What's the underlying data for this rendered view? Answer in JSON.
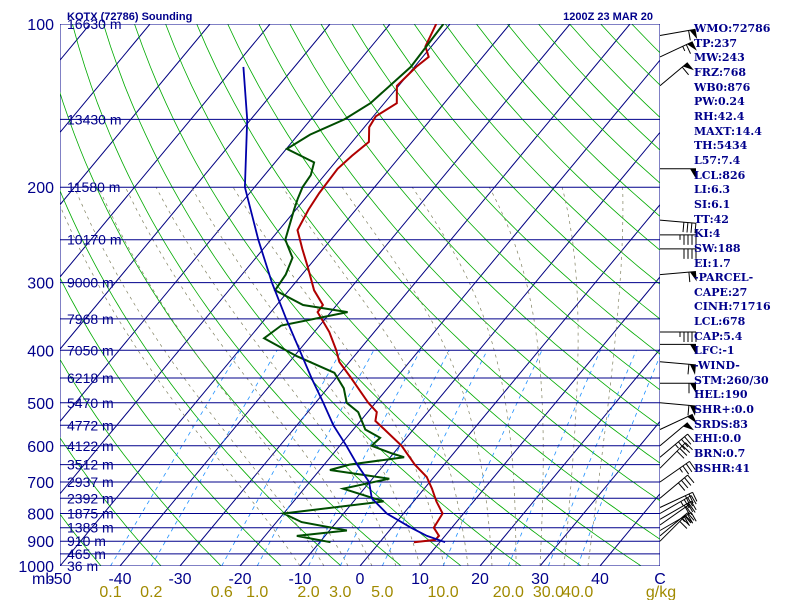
{
  "header": {
    "station": "KOTX (72786) Sounding",
    "time": "1200Z 23 MAR 20"
  },
  "axis": {
    "pressure_unit": "mb",
    "mixing_unit": "g/kg",
    "corner_label": "C"
  },
  "colors": {
    "isobar": "#00008b",
    "isotherm": "#000080",
    "dry_adiabat": "#00aa00",
    "moist_adiabat": "#808060",
    "mixing_ratio": "#1e90ff",
    "temperature": "#b00000",
    "dewpoint": "#004d00",
    "parcel": "#0000aa"
  },
  "chart_data": {
    "type": "skew-t",
    "ylim_mb": [
      1000,
      100
    ],
    "xlim_C": [
      -50,
      50
    ],
    "skew_C_per_log10": 75,
    "pressure_levels": [
      {
        "p": 100,
        "label": "100",
        "height": "16630 m"
      },
      {
        "p": 150,
        "label": "",
        "height": "13430 m"
      },
      {
        "p": 200,
        "label": "200",
        "height": "11580 m"
      },
      {
        "p": 250,
        "label": "",
        "height": "10170 m"
      },
      {
        "p": 300,
        "label": "300",
        "height": "9000 m"
      },
      {
        "p": 350,
        "label": "",
        "height": "7968 m"
      },
      {
        "p": 400,
        "label": "400",
        "height": "7050 m"
      },
      {
        "p": 450,
        "label": "",
        "height": "6218 m"
      },
      {
        "p": 500,
        "label": "500",
        "height": "5470 m"
      },
      {
        "p": 550,
        "label": "",
        "height": "4772 m"
      },
      {
        "p": 600,
        "label": "600",
        "height": "4122 m"
      },
      {
        "p": 650,
        "label": "",
        "height": "3512 m"
      },
      {
        "p": 700,
        "label": "700",
        "height": "2937 m"
      },
      {
        "p": 750,
        "label": "",
        "height": "2392 m"
      },
      {
        "p": 800,
        "label": "800",
        "height": "1875 m"
      },
      {
        "p": 850,
        "label": "",
        "height": "1383 m"
      },
      {
        "p": 900,
        "label": "900",
        "height": "910 m"
      },
      {
        "p": 950,
        "label": "",
        "height": "465 m"
      },
      {
        "p": 1000,
        "label": "1000",
        "height": "36 m"
      }
    ],
    "temperature_ticks": [
      "-50",
      "-40",
      "-30",
      "-20",
      "-10",
      "0",
      "10",
      "20",
      "30",
      "40",
      "C"
    ],
    "mixing_ratio_lines": [
      {
        "w": 0.1,
        "label": "0.1"
      },
      {
        "w": 0.2,
        "label": "0.2"
      },
      {
        "w": 0.6,
        "label": "0.6"
      },
      {
        "w": 1.0,
        "label": "1.0"
      },
      {
        "w": 2.0,
        "label": "2.0"
      },
      {
        "w": 3.0,
        "label": "3.0"
      },
      {
        "w": 5.0,
        "label": "5.0"
      },
      {
        "w": 10.0,
        "label": "10.0"
      },
      {
        "w": 20.0,
        "label": "20.0"
      },
      {
        "w": 30.0,
        "label": "30.0"
      },
      {
        "w": 40.0,
        "label": "40.0"
      }
    ],
    "series": [
      {
        "name": "Temperature",
        "points": [
          {
            "p": 904,
            "t": 5.7
          },
          {
            "p": 895,
            "t": 8.9
          },
          {
            "p": 880,
            "t": 9.0
          },
          {
            "p": 850,
            "t": 7.0
          },
          {
            "p": 800,
            "t": 6.5
          },
          {
            "p": 760,
            "t": 3.8
          },
          {
            "p": 720,
            "t": 1.3
          },
          {
            "p": 685,
            "t": -1.2
          },
          {
            "p": 650,
            "t": -4.9
          },
          {
            "p": 600,
            "t": -9.7
          },
          {
            "p": 560,
            "t": -14.8
          },
          {
            "p": 540,
            "t": -17.5
          },
          {
            "p": 520,
            "t": -18.5
          },
          {
            "p": 500,
            "t": -21.2
          },
          {
            "p": 450,
            "t": -27.5
          },
          {
            "p": 420,
            "t": -31.7
          },
          {
            "p": 400,
            "t": -33.8
          },
          {
            "p": 370,
            "t": -37.5
          },
          {
            "p": 340,
            "t": -42.2
          },
          {
            "p": 330,
            "t": -42.3
          },
          {
            "p": 310,
            "t": -45.8
          },
          {
            "p": 280,
            "t": -50.2
          },
          {
            "p": 260,
            "t": -53.5
          },
          {
            "p": 240,
            "t": -56.9
          },
          {
            "p": 220,
            "t": -57.9
          },
          {
            "p": 205,
            "t": -58.4
          },
          {
            "p": 185,
            "t": -58.7
          },
          {
            "p": 175,
            "t": -58.1
          },
          {
            "p": 165,
            "t": -57.2
          },
          {
            "p": 155,
            "t": -59.2
          },
          {
            "p": 148,
            "t": -59.6
          },
          {
            "p": 140,
            "t": -57.9
          },
          {
            "p": 130,
            "t": -60.3
          },
          {
            "p": 125,
            "t": -60.0
          },
          {
            "p": 120,
            "t": -59.7
          },
          {
            "p": 115,
            "t": -59.0
          },
          {
            "p": 110,
            "t": -61.0
          },
          {
            "p": 100,
            "t": -62.3
          }
        ]
      },
      {
        "name": "Dewpoint",
        "points": [
          {
            "p": 904,
            "t": -8.2
          },
          {
            "p": 880,
            "t": -14.7
          },
          {
            "p": 860,
            "t": -7.1
          },
          {
            "p": 830,
            "t": -15.8
          },
          {
            "p": 800,
            "t": -20.0
          },
          {
            "p": 760,
            "t": -5.0
          },
          {
            "p": 720,
            "t": -13.5
          },
          {
            "p": 690,
            "t": -7.2
          },
          {
            "p": 665,
            "t": -18.3
          },
          {
            "p": 650,
            "t": -15.8
          },
          {
            "p": 630,
            "t": -7.7
          },
          {
            "p": 620,
            "t": -10.2
          },
          {
            "p": 600,
            "t": -14.7
          },
          {
            "p": 580,
            "t": -14.4
          },
          {
            "p": 560,
            "t": -18.0
          },
          {
            "p": 520,
            "t": -21.6
          },
          {
            "p": 500,
            "t": -24.8
          },
          {
            "p": 470,
            "t": -27.3
          },
          {
            "p": 440,
            "t": -31.0
          },
          {
            "p": 410,
            "t": -39.6
          },
          {
            "p": 380,
            "t": -47.5
          },
          {
            "p": 360,
            "t": -46.4
          },
          {
            "p": 340,
            "t": -37.2
          },
          {
            "p": 330,
            "t": -45.6
          },
          {
            "p": 310,
            "t": -52.3
          },
          {
            "p": 290,
            "t": -52.7
          },
          {
            "p": 270,
            "t": -53.9
          },
          {
            "p": 250,
            "t": -57.6
          },
          {
            "p": 220,
            "t": -60.3
          },
          {
            "p": 210,
            "t": -61.2
          },
          {
            "p": 200,
            "t": -62.0
          },
          {
            "p": 190,
            "t": -62.3
          },
          {
            "p": 180,
            "t": -63.5
          },
          {
            "p": 170,
            "t": -69.9
          },
          {
            "p": 160,
            "t": -68.0
          },
          {
            "p": 150,
            "t": -64.4
          },
          {
            "p": 140,
            "t": -62.3
          },
          {
            "p": 120,
            "t": -60.6
          },
          {
            "p": 100,
            "t": -61.1
          }
        ]
      },
      {
        "name": "Parcel",
        "points": [
          {
            "p": 904,
            "t": 10.9
          },
          {
            "p": 880,
            "t": 7.0
          },
          {
            "p": 850,
            "t": 3.2
          },
          {
            "p": 800,
            "t": -2.8
          },
          {
            "p": 750,
            "t": -7.4
          },
          {
            "p": 700,
            "t": -10.1
          },
          {
            "p": 650,
            "t": -14.5
          },
          {
            "p": 600,
            "t": -18.9
          },
          {
            "p": 550,
            "t": -23.9
          },
          {
            "p": 500,
            "t": -28.7
          },
          {
            "p": 450,
            "t": -34.1
          },
          {
            "p": 400,
            "t": -39.9
          },
          {
            "p": 350,
            "t": -46.5
          },
          {
            "p": 300,
            "t": -53.9
          },
          {
            "p": 250,
            "t": -62.1
          },
          {
            "p": 200,
            "t": -71.6
          },
          {
            "p": 150,
            "t": -80.6
          },
          {
            "p": 120,
            "t": -88.5
          }
        ]
      }
    ],
    "wind_barbs": [
      {
        "p": 900,
        "dir": 225,
        "kt": 30
      },
      {
        "p": 880,
        "dir": 230,
        "kt": 25
      },
      {
        "p": 860,
        "dir": 240,
        "kt": 30
      },
      {
        "p": 840,
        "dir": 235,
        "kt": 20
      },
      {
        "p": 820,
        "dir": 240,
        "kt": 30
      },
      {
        "p": 800,
        "dir": 240,
        "kt": 35
      },
      {
        "p": 780,
        "dir": 245,
        "kt": 30
      },
      {
        "p": 750,
        "dir": 230,
        "kt": 40
      },
      {
        "p": 700,
        "dir": 235,
        "kt": 35
      },
      {
        "p": 660,
        "dir": 225,
        "kt": 40
      },
      {
        "p": 630,
        "dir": 230,
        "kt": 45
      },
      {
        "p": 600,
        "dir": 230,
        "kt": 50
      },
      {
        "p": 560,
        "dir": 245,
        "kt": 50
      },
      {
        "p": 500,
        "dir": 275,
        "kt": 60
      },
      {
        "p": 460,
        "dir": 270,
        "kt": 60
      },
      {
        "p": 420,
        "dir": 275,
        "kt": 60
      },
      {
        "p": 390,
        "dir": 270,
        "kt": 50
      },
      {
        "p": 370,
        "dir": 270,
        "kt": 45
      },
      {
        "p": 290,
        "dir": 265,
        "kt": 60
      },
      {
        "p": 260,
        "dir": 270,
        "kt": 40
      },
      {
        "p": 245,
        "dir": 270,
        "kt": 45
      },
      {
        "p": 230,
        "dir": 275,
        "kt": 40
      },
      {
        "p": 185,
        "dir": 270,
        "kt": 50
      },
      {
        "p": 130,
        "dir": 230,
        "kt": 60
      },
      {
        "p": 115,
        "dir": 245,
        "kt": 65
      },
      {
        "p": 105,
        "dir": 260,
        "kt": 60
      }
    ]
  },
  "stats": [
    "WMO:72786",
    "TP:237",
    "MW:243",
    "FRZ:768",
    "WB0:876",
    "PW:0.24",
    "RH:42.4",
    "MAXT:14.4",
    "TH:5434",
    "L57:7.4",
    "LCL:826",
    "LI:6.3",
    "SI:6.1",
    "TT:42",
    "KI:4",
    "SW:188",
    "EI:1.7",
    "-PARCEL-",
    "CAPE:27",
    "CINH:71716",
    "LCL:678",
    "CAP:5.4",
    "LFC:-1",
    "-WIND-",
    "STM:260/30",
    "HEL:190",
    "SHR+:0.0",
    "SRDS:83",
    "EHI:0.0",
    "BRN:0.7",
    "BSHR:41"
  ]
}
